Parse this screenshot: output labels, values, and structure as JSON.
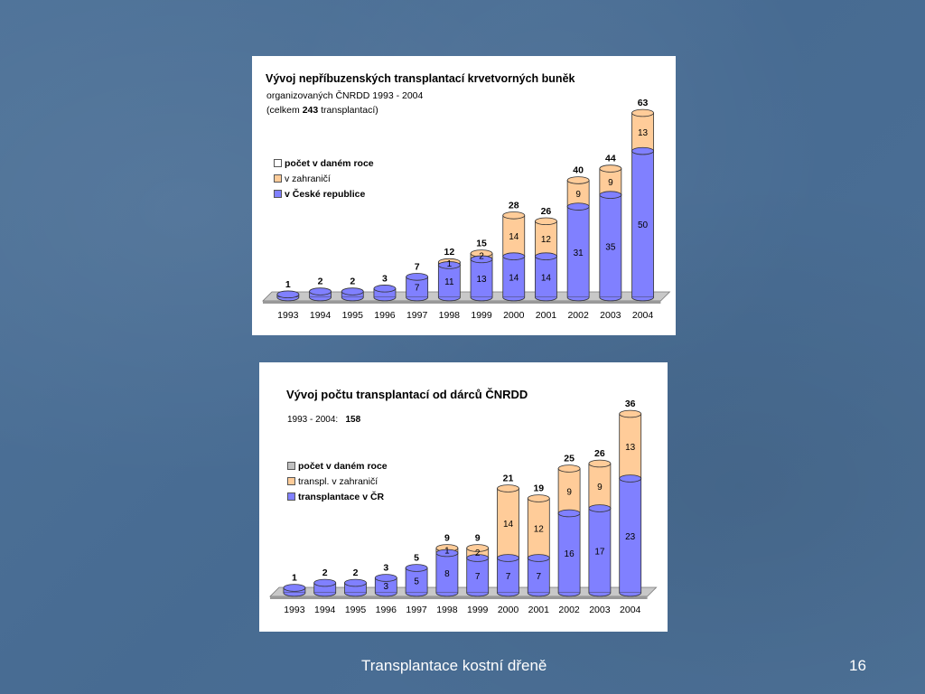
{
  "footer": {
    "title": "Transplantace kostní dřeně",
    "page_number": "16"
  },
  "colors": {
    "blue": "#8080ff",
    "orange": "#ffcc99",
    "grey": "#c0c0c0"
  },
  "chart_data": [
    {
      "type": "bar",
      "stacked": true,
      "title": "Vývoj nepříbuzenských transplantací krvetvorných buněk",
      "subtitle1": "organizovaných ČNRDD 1993 - 2004",
      "subtitle2_prefix": "(celkem ",
      "subtitle2_bold": "243",
      "subtitle2_suffix": " transplantací)",
      "legend": [
        "počet v daném roce",
        "v zahraničí",
        "v České republice"
      ],
      "categories": [
        "1993",
        "1994",
        "1995",
        "1996",
        "1997",
        "1998",
        "1999",
        "2000",
        "2001",
        "2002",
        "2003",
        "2004"
      ],
      "series": [
        {
          "name": "v České republice",
          "values": [
            1,
            2,
            2,
            3,
            7,
            11,
            13,
            14,
            14,
            31,
            35,
            50
          ]
        },
        {
          "name": "v zahraničí",
          "values": [
            0,
            0,
            0,
            0,
            0,
            1,
            2,
            14,
            12,
            9,
            9,
            13
          ]
        }
      ],
      "totals": [
        1,
        2,
        2,
        3,
        7,
        12,
        15,
        28,
        26,
        40,
        44,
        63
      ],
      "inner_labels_blue": [
        "",
        "",
        "",
        "",
        "7",
        "11",
        "13",
        "14",
        "14",
        "31",
        "35",
        "50"
      ],
      "inner_labels_orange": [
        "",
        "",
        "",
        "",
        "",
        "1",
        "2",
        "14",
        "12",
        "9",
        "9",
        "13"
      ],
      "ylim": [
        0,
        63
      ]
    },
    {
      "type": "bar",
      "stacked": true,
      "title": "Vývoj počtu transplantací od dárců ČNRDD",
      "subtitle_prefix": "1993 - 2004:   ",
      "subtitle_bold": "158",
      "legend": [
        "počet v daném roce",
        "transpl. v zahraničí",
        "transplantace v ČR"
      ],
      "categories": [
        "1993",
        "1994",
        "1995",
        "1996",
        "1997",
        "1998",
        "1999",
        "2000",
        "2001",
        "2002",
        "2003",
        "2004"
      ],
      "series": [
        {
          "name": "transplantace v ČR",
          "values": [
            1,
            2,
            2,
            3,
            5,
            8,
            7,
            7,
            7,
            16,
            17,
            23
          ]
        },
        {
          "name": "transpl. v zahraničí",
          "values": [
            0,
            0,
            0,
            0,
            0,
            1,
            2,
            14,
            12,
            9,
            9,
            13
          ]
        }
      ],
      "totals": [
        1,
        2,
        2,
        3,
        5,
        9,
        9,
        21,
        19,
        25,
        26,
        36
      ],
      "inner_labels_blue": [
        "",
        "",
        "",
        "3",
        "5",
        "8",
        "7",
        "7",
        "7",
        "16",
        "17",
        "23"
      ],
      "inner_labels_orange": [
        "",
        "",
        "",
        "",
        "",
        "1",
        "2",
        "14",
        "12",
        "9",
        "9",
        "13"
      ],
      "ylim": [
        0,
        36
      ]
    }
  ]
}
